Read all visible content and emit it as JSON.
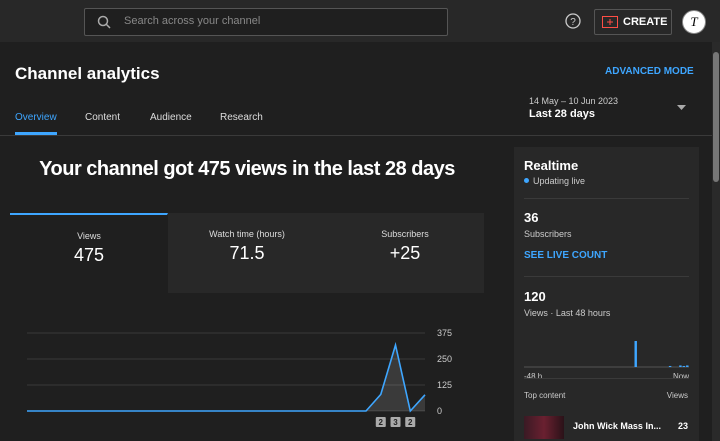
{
  "header": {
    "search_placeholder": "Search across your channel",
    "create": "CREATE",
    "avatar": "T"
  },
  "page": {
    "title": "Channel analytics",
    "advanced_mode": "ADVANCED MODE",
    "tabs": [
      "Overview",
      "Content",
      "Audience",
      "Research"
    ],
    "active_tab": "Overview",
    "date_range": "14 May – 10 Jun 2023",
    "period": "Last 28 days"
  },
  "summary": {
    "headline": "Your channel got 475 views in the last 28 days",
    "metrics": [
      {
        "label": "Views",
        "value": "475"
      },
      {
        "label": "Watch time (hours)",
        "value": "71.5"
      },
      {
        "label": "Subscribers",
        "value": "+25"
      }
    ]
  },
  "chart": {
    "type": "line",
    "values": [
      0,
      0,
      0,
      0,
      0,
      0,
      0,
      0,
      0,
      0,
      0,
      0,
      0,
      0,
      0,
      0,
      0,
      0,
      0,
      0,
      0,
      0,
      0,
      0,
      80,
      317,
      0,
      78
    ],
    "ylim": [
      0,
      375
    ],
    "yticks": [
      0,
      125,
      250,
      375
    ],
    "color": "#3ea6ff",
    "markers": [
      "2",
      "3",
      "2"
    ]
  },
  "realtime": {
    "title": "Realtime",
    "status": "Updating live",
    "subscribers": "36",
    "subscribers_label": "Subscribers",
    "live_count": "SEE LIVE COUNT",
    "views": "120",
    "views_label": "Views · Last 48 hours",
    "chart": {
      "type": "bar",
      "values": [
        0,
        0,
        0,
        0,
        0,
        0,
        0,
        0,
        0,
        0,
        0,
        0,
        0,
        0,
        0,
        0,
        0,
        0,
        0,
        0,
        0,
        0,
        0,
        0,
        0,
        0,
        0,
        0,
        0,
        0,
        0,
        0,
        100,
        0,
        0,
        0,
        0,
        0,
        0,
        0,
        0,
        0,
        4,
        0,
        0,
        6,
        4,
        6
      ],
      "color": "#3ea6ff",
      "x_start": "-48 h",
      "x_end": "Now"
    },
    "top_content_label": "Top content",
    "views_column": "Views",
    "top_content": [
      {
        "title": "John Wick Mass In...",
        "views": "23"
      }
    ]
  }
}
